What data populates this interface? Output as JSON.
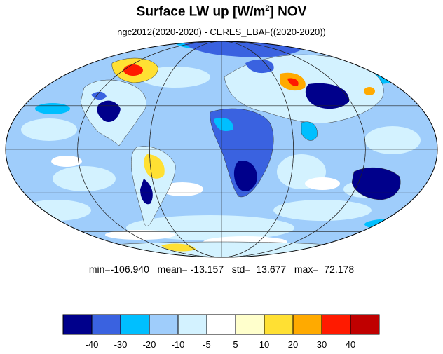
{
  "title": {
    "prefix": "Surface LW up [W/m",
    "superscript": "2",
    "suffix": "]  NOV"
  },
  "subtitle": "ngc2012(2020-2020) - CERES_EBAF((2020-2020))",
  "stats": {
    "text": "min=-106.940   mean= -13.157   std=  13.677   max=  72.178",
    "min": -106.94,
    "mean": -13.157,
    "std": 13.677,
    "max": 72.178
  },
  "map": {
    "projection": "mollweide",
    "background_color": "#9fcdfb",
    "graticule_lats": [
      -60,
      -30,
      0,
      30,
      60
    ],
    "graticule_lons": [
      -120,
      -60,
      0,
      60,
      120
    ]
  },
  "colorbar": {
    "colors": [
      "#00008b",
      "#3a62e0",
      "#00bfff",
      "#9fcdfb",
      "#d3f2ff",
      "#ffffff",
      "#ffffcc",
      "#ffe033",
      "#ffaa00",
      "#ff1a00",
      "#c00000"
    ],
    "labels": [
      "-40",
      "-30",
      "-20",
      "-10",
      "-5",
      "5",
      "10",
      "20",
      "30",
      "40"
    ]
  }
}
